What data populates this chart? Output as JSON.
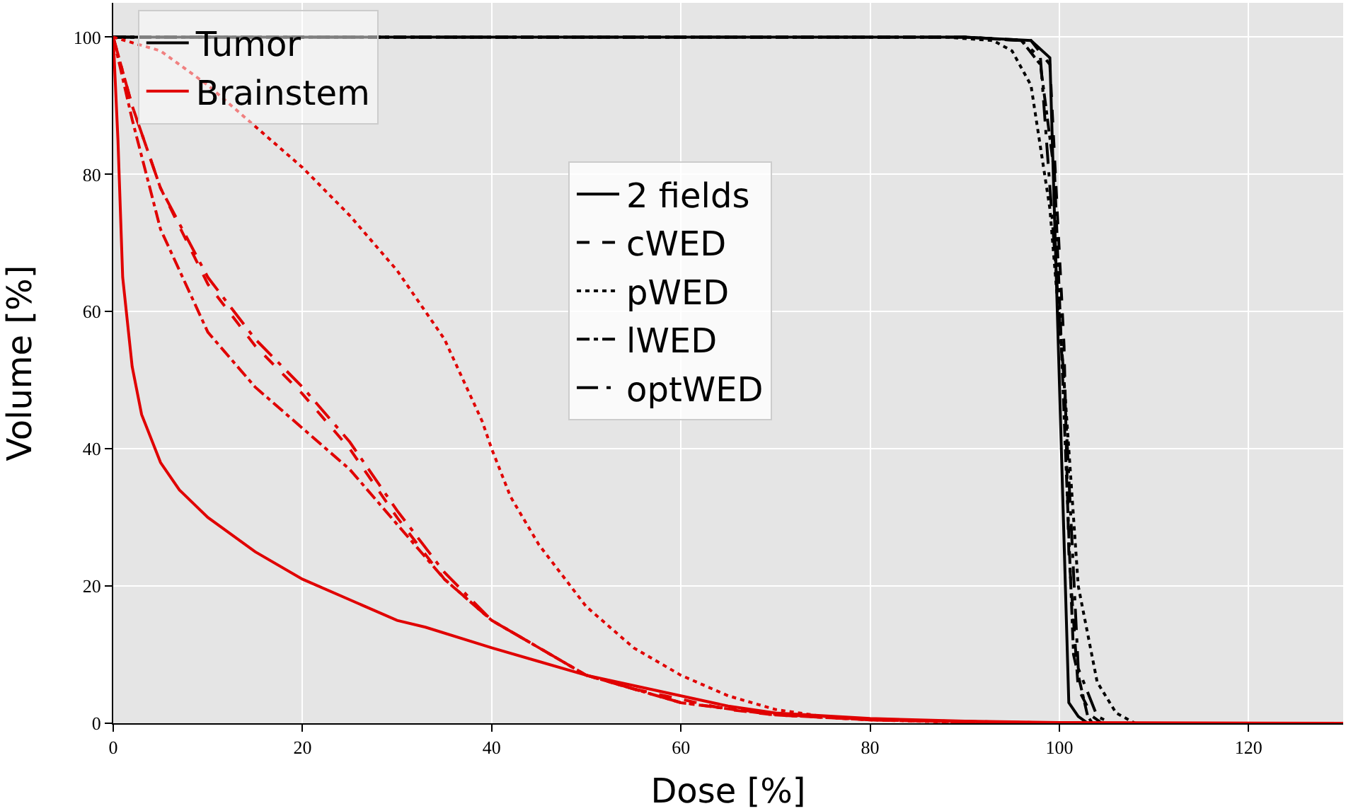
{
  "chart_data": {
    "type": "line",
    "xlabel": "Dose [%]",
    "ylabel": "Volume [%]",
    "xlim": [
      0,
      130
    ],
    "ylim": [
      0,
      105
    ],
    "xticks": [
      0,
      20,
      40,
      60,
      80,
      100,
      120
    ],
    "yticks": [
      0,
      20,
      40,
      60,
      80,
      100
    ],
    "grid": true,
    "legend": "top left",
    "series": [
      {
        "name": "Tumor",
        "color": "#000000",
        "line_style": "solid"
      },
      {
        "name": "Brainstem",
        "color": "#e00000",
        "line_style": "solid"
      },
      {
        "name": "2 fields",
        "color": "#000000",
        "line_style": "solid",
        "x": [
          0,
          90,
          97,
          99,
          100,
          101,
          102,
          103,
          130
        ],
        "values": [
          100,
          100,
          99.5,
          97,
          50,
          3,
          1,
          0,
          0
        ]
      },
      {
        "name": "cWED",
        "color": "#000000",
        "line_style": "dashed",
        "x": [
          0,
          90,
          97,
          99,
          100.5,
          101,
          102,
          103.5,
          104.5
        ],
        "values": [
          100,
          100,
          99.5,
          96,
          55,
          25,
          5,
          1,
          0
        ]
      },
      {
        "name": "pWED",
        "color": "#000000",
        "line_style": "dotted",
        "x": [
          0,
          88,
          93,
          95,
          97,
          99,
          100.5,
          102,
          104,
          106,
          108
        ],
        "values": [
          100,
          100,
          99.5,
          98,
          93,
          75,
          50,
          20,
          6,
          1.5,
          0
        ]
      },
      {
        "name": "lWED",
        "color": "#000000",
        "line_style": "dashdot",
        "x": [
          0,
          90,
          96,
          98,
          99.5,
          100.5,
          101.5,
          103,
          103.5
        ],
        "values": [
          100,
          100,
          99.5,
          96,
          80,
          45,
          10,
          1,
          0
        ]
      },
      {
        "name": "optWED",
        "color": "#000000",
        "line_style": "longdashdot",
        "x": [
          0,
          90,
          96,
          98,
          100.5,
          102,
          104,
          105.5
        ],
        "values": [
          100,
          100,
          99.5,
          97,
          50,
          8,
          1,
          0
        ]
      },
      {
        "color": "#e00000",
        "line_style": "solid",
        "x": [
          0,
          0.5,
          1,
          2,
          3,
          5,
          7,
          10,
          15,
          20,
          25,
          30,
          33,
          40,
          45,
          50,
          55,
          60,
          65,
          70,
          80,
          90,
          100,
          130
        ],
        "values": [
          100,
          85,
          65,
          52,
          45,
          38,
          34,
          30,
          25,
          21,
          18,
          15,
          14,
          11,
          9,
          7,
          5.5,
          4,
          2.5,
          1.5,
          0.7,
          0.3,
          0.1,
          0
        ]
      },
      {
        "color": "#e00000",
        "line_style": "dashed",
        "x": [
          0,
          2,
          5,
          10,
          15,
          20,
          25,
          30,
          35,
          40,
          45,
          50,
          55,
          60,
          65,
          70,
          80,
          90,
          98
        ],
        "values": [
          100,
          90,
          78,
          64,
          55,
          48,
          40,
          30,
          21,
          15,
          11,
          7,
          5,
          3.5,
          2,
          1.2,
          0.5,
          0.2,
          0
        ]
      },
      {
        "color": "#e00000",
        "line_style": "dotted",
        "x": [
          0,
          5,
          10,
          15,
          20,
          25,
          30,
          35,
          39,
          40,
          42,
          45,
          50,
          55,
          60,
          65,
          70,
          75,
          80,
          90,
          105
        ],
        "values": [
          100,
          98,
          93,
          87,
          81,
          74,
          66,
          56,
          44,
          40,
          33,
          26,
          17,
          11,
          7,
          4,
          2,
          1,
          0.5,
          0.1,
          0
        ]
      },
      {
        "color": "#e00000",
        "line_style": "dashdot",
        "x": [
          0,
          2,
          5,
          10,
          15,
          20,
          25,
          30,
          35,
          40,
          45,
          50,
          55,
          60,
          70,
          80,
          95
        ],
        "values": [
          100,
          88,
          72,
          57,
          49,
          43,
          37,
          29,
          21,
          15,
          11,
          7,
          5,
          3,
          1.2,
          0.5,
          0
        ]
      },
      {
        "color": "#e00000",
        "line_style": "longdashdot",
        "x": [
          0,
          2,
          5,
          10,
          15,
          20,
          25,
          30,
          35,
          40,
          45,
          50,
          55,
          60,
          70,
          80,
          102
        ],
        "values": [
          100,
          90,
          78,
          65,
          56,
          49,
          41,
          31,
          22,
          15,
          11,
          7,
          5,
          3,
          1.3,
          0.5,
          0
        ]
      }
    ]
  }
}
